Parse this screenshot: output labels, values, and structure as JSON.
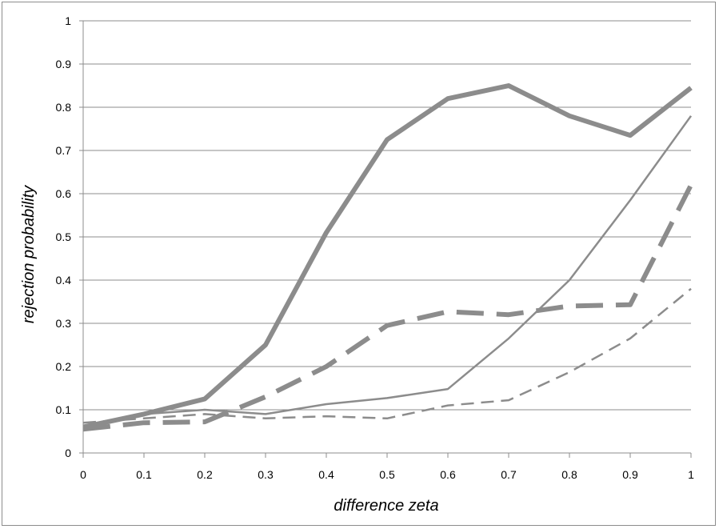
{
  "chart_data": {
    "type": "line",
    "title": "",
    "xlabel": "difference zeta",
    "ylabel": "rejection probability",
    "x": [
      0,
      0.1,
      0.2,
      0.3,
      0.4,
      0.5,
      0.6,
      0.7,
      0.8,
      0.9,
      1
    ],
    "x_tick_labels": [
      "0",
      "0.1",
      "0.2",
      "0.3",
      "0.4",
      "0.5",
      "0.6",
      "0.7",
      "0.8",
      "0.9",
      "1"
    ],
    "y_tick_labels": [
      "0",
      "0.1",
      "0.2",
      "0.3",
      "0.4",
      "0.5",
      "0.6",
      "0.7",
      "0.8",
      "0.9",
      "1"
    ],
    "xlim": [
      0,
      1
    ],
    "ylim": [
      0,
      1
    ],
    "grid": "horizontal",
    "legend": "none",
    "series": [
      {
        "style": "thick-solid",
        "color": "#8c8c8c",
        "values": [
          0.06,
          0.09,
          0.125,
          0.25,
          0.51,
          0.725,
          0.82,
          0.85,
          0.78,
          0.735,
          0.845
        ]
      },
      {
        "style": "thin-solid",
        "color": "#8c8c8c",
        "values": [
          0.06,
          0.09,
          0.1,
          0.09,
          0.113,
          0.127,
          0.148,
          0.265,
          0.4,
          0.585,
          0.78
        ]
      },
      {
        "style": "thick-dashed",
        "color": "#8c8c8c",
        "values": [
          0.055,
          0.07,
          0.072,
          0.13,
          0.2,
          0.295,
          0.327,
          0.32,
          0.34,
          0.343,
          0.62
        ]
      },
      {
        "style": "thin-dashed",
        "color": "#8c8c8c",
        "values": [
          0.07,
          0.08,
          0.09,
          0.08,
          0.085,
          0.08,
          0.11,
          0.122,
          0.187,
          0.265,
          0.38
        ]
      }
    ]
  }
}
